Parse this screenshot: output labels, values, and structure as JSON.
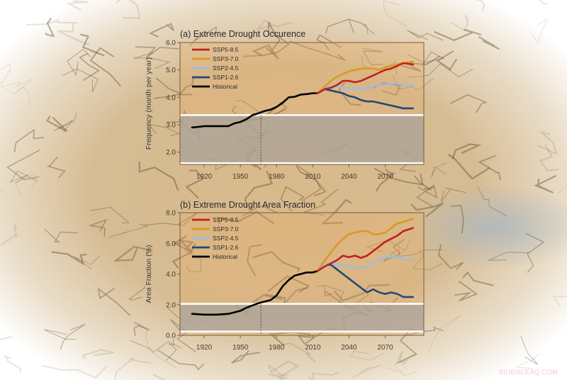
{
  "watermark": "SCIENCEAQ.COM",
  "colors": {
    "SSP5-8.5": "#c0211f",
    "SSP3-7.0": "#d99a22",
    "SSP2-4.5": "#9dbde0",
    "SSP1-2.6": "#1f4a75",
    "Historical": "#000000",
    "shaded_band": "#a9a39c",
    "frame": "#7a5a3a"
  },
  "chart_data": [
    {
      "type": "line",
      "title": "(a) Extreme Drought Occurence",
      "xlabel": "",
      "ylabel": "Frequency (month per year)",
      "xlim": [
        1900,
        2102
      ],
      "ylim": [
        1.55,
        6.0
      ],
      "xticks": [
        1920,
        1950,
        1980,
        2010,
        2040,
        2070
      ],
      "yticks": [
        "2.0",
        "3.0",
        "4.0",
        "5.0",
        "6.0"
      ],
      "grid": false,
      "legend_placement": "top-left",
      "shaded_band": [
        1.6,
        3.35
      ],
      "reference_line_x": 1967,
      "series": [
        {
          "name": "SSP5-8.5",
          "x": [
            2014,
            2020,
            2025,
            2030,
            2035,
            2040,
            2045,
            2050,
            2055,
            2060,
            2065,
            2070,
            2075,
            2080,
            2085,
            2093
          ],
          "y": [
            4.15,
            4.3,
            4.35,
            4.45,
            4.6,
            4.6,
            4.55,
            4.6,
            4.7,
            4.8,
            4.9,
            5.0,
            5.05,
            5.15,
            5.25,
            5.2
          ]
        },
        {
          "name": "SSP3-7.0",
          "x": [
            2014,
            2020,
            2025,
            2030,
            2035,
            2040,
            2045,
            2050,
            2055,
            2060,
            2065,
            2070,
            2075,
            2080,
            2085,
            2093
          ],
          "y": [
            4.15,
            4.4,
            4.6,
            4.75,
            4.85,
            4.95,
            5.0,
            5.05,
            5.05,
            5.05,
            5.0,
            5.1,
            5.15,
            5.2,
            5.25,
            5.3
          ]
        },
        {
          "name": "SSP2-4.5",
          "x": [
            2014,
            2020,
            2025,
            2030,
            2035,
            2040,
            2045,
            2050,
            2055,
            2060,
            2065,
            2070,
            2075,
            2080,
            2085,
            2093
          ],
          "y": [
            4.15,
            4.35,
            4.4,
            4.4,
            4.35,
            4.35,
            4.3,
            4.3,
            4.35,
            4.4,
            4.45,
            4.45,
            4.5,
            4.5,
            4.45,
            4.45
          ]
        },
        {
          "name": "SSP1-2.6",
          "x": [
            2014,
            2020,
            2025,
            2030,
            2035,
            2040,
            2045,
            2050,
            2055,
            2060,
            2065,
            2070,
            2075,
            2080,
            2085,
            2093
          ],
          "y": [
            4.15,
            4.3,
            4.25,
            4.2,
            4.15,
            4.05,
            4.0,
            3.9,
            3.85,
            3.85,
            3.8,
            3.75,
            3.7,
            3.65,
            3.6,
            3.6
          ]
        },
        {
          "name": "Historical",
          "x": [
            1910,
            1915,
            1920,
            1930,
            1940,
            1945,
            1950,
            1955,
            1960,
            1965,
            1970,
            1975,
            1980,
            1985,
            1990,
            1995,
            2000,
            2005,
            2010,
            2014
          ],
          "y": [
            2.9,
            2.92,
            2.95,
            2.95,
            2.95,
            3.05,
            3.1,
            3.2,
            3.35,
            3.42,
            3.5,
            3.55,
            3.65,
            3.8,
            4.0,
            4.02,
            4.1,
            4.12,
            4.15,
            4.15
          ]
        }
      ]
    },
    {
      "type": "line",
      "title": "(b) Extreme Drought Area Fraction",
      "xlabel": "",
      "ylabel": "Area Fraction (%)",
      "xlim": [
        1900,
        2102
      ],
      "ylim": [
        0.0,
        8.0
      ],
      "xticks": [
        1920,
        1950,
        1980,
        2010,
        2040,
        2070
      ],
      "yticks": [
        "0.0",
        "2.0",
        "4.0",
        "6.0",
        "8.0"
      ],
      "grid": false,
      "legend_placement": "top-left",
      "shaded_band": [
        0.25,
        2.05
      ],
      "reference_line_x": 1967,
      "series": [
        {
          "name": "SSP5-8.5",
          "x": [
            2014,
            2020,
            2025,
            2030,
            2035,
            2040,
            2045,
            2050,
            2055,
            2060,
            2065,
            2070,
            2075,
            2080,
            2085,
            2093
          ],
          "y": [
            4.2,
            4.5,
            4.7,
            4.9,
            5.2,
            5.1,
            5.2,
            5.05,
            5.2,
            5.5,
            5.8,
            6.1,
            6.3,
            6.5,
            6.8,
            7.0
          ]
        },
        {
          "name": "SSP3-7.0",
          "x": [
            2014,
            2020,
            2025,
            2030,
            2035,
            2040,
            2045,
            2050,
            2055,
            2060,
            2065,
            2070,
            2075,
            2080,
            2085,
            2093
          ],
          "y": [
            4.2,
            4.9,
            5.4,
            5.9,
            6.3,
            6.6,
            6.7,
            6.8,
            6.8,
            6.6,
            6.6,
            6.7,
            7.0,
            7.3,
            7.4,
            7.6
          ]
        },
        {
          "name": "SSP2-4.5",
          "x": [
            2014,
            2020,
            2025,
            2030,
            2035,
            2040,
            2045,
            2050,
            2055,
            2060,
            2065,
            2070,
            2075,
            2080,
            2085,
            2093
          ],
          "y": [
            4.2,
            4.6,
            4.7,
            4.6,
            4.6,
            4.5,
            4.4,
            4.4,
            4.5,
            4.7,
            4.9,
            5.1,
            5.2,
            5.0,
            5.0,
            4.9
          ]
        },
        {
          "name": "SSP1-2.6",
          "x": [
            2014,
            2020,
            2025,
            2030,
            2035,
            2040,
            2045,
            2050,
            2055,
            2060,
            2065,
            2070,
            2075,
            2080,
            2085,
            2093
          ],
          "y": [
            4.2,
            4.6,
            4.6,
            4.3,
            4.0,
            3.7,
            3.4,
            3.1,
            2.8,
            3.0,
            2.8,
            2.7,
            2.8,
            2.7,
            2.5,
            2.5
          ]
        },
        {
          "name": "Historical",
          "x": [
            1910,
            1920,
            1930,
            1940,
            1945,
            1950,
            1955,
            1960,
            1965,
            1970,
            1975,
            1980,
            1985,
            1990,
            1995,
            2000,
            2005,
            2010,
            2014
          ],
          "y": [
            1.4,
            1.35,
            1.35,
            1.4,
            1.5,
            1.6,
            1.8,
            1.95,
            2.1,
            2.2,
            2.3,
            2.6,
            3.2,
            3.6,
            3.9,
            4.0,
            4.1,
            4.1,
            4.2
          ]
        }
      ]
    }
  ]
}
